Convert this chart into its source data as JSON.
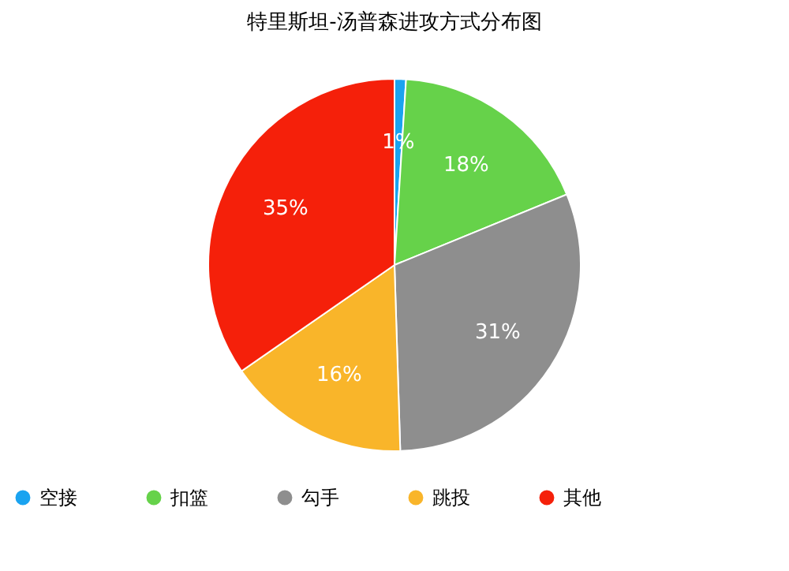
{
  "chart_data": {
    "type": "pie",
    "title": "特里斯坦-汤普森进攻方式分布图",
    "categories": [
      "空接",
      "扣篮",
      "勾手",
      "跳投",
      "其他"
    ],
    "values": [
      1,
      18,
      31,
      16,
      35
    ],
    "colors": [
      "#1aa3f0",
      "#66d24a",
      "#8e8e8e",
      "#f9b52a",
      "#f5200a"
    ],
    "value_labels": [
      "1%",
      "18%",
      "31%",
      "16%",
      "35%"
    ],
    "legend": "bottom"
  }
}
